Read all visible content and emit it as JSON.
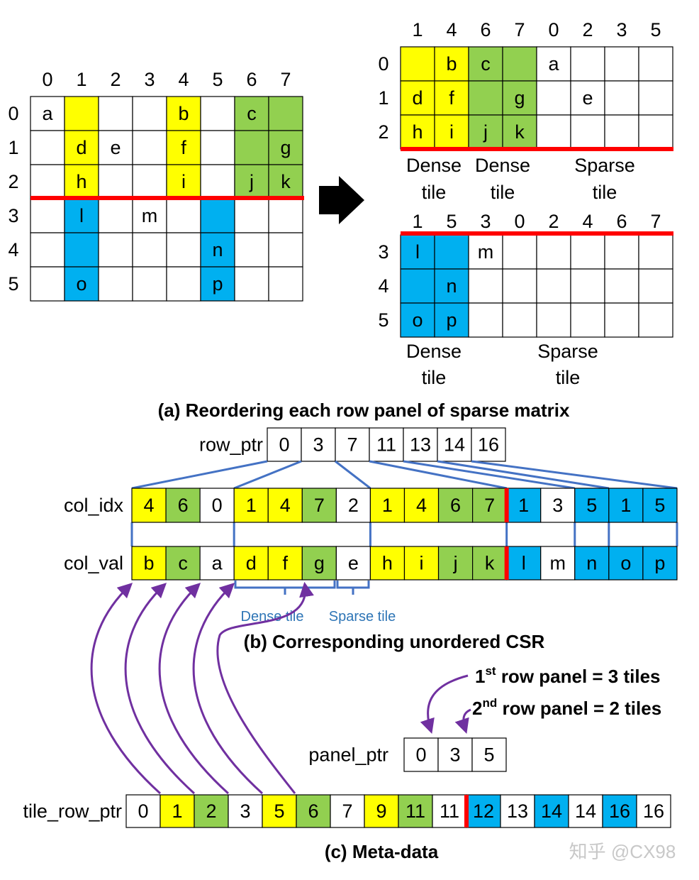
{
  "colors": {
    "Y": "#ffff00",
    "G": "#92d050",
    "B": "#00b0f0",
    "W": "#ffffff",
    "red": "#ff0000",
    "link": "#4472c4",
    "arrow": "#7030a0",
    "tile_label": "#2e75b6"
  },
  "matrix": {
    "col_labels": [
      "0",
      "1",
      "2",
      "3",
      "4",
      "5",
      "6",
      "7"
    ],
    "row_labels": [
      "0",
      "1",
      "2",
      "3",
      "4",
      "5"
    ],
    "colors": [
      "WYWWYWGG",
      "WYWWYWGG",
      "WYWWYWGG",
      "WBWWWBWW",
      "WBWWWBWW",
      "WBWWWBWW"
    ],
    "values": [
      [
        "a",
        "",
        "",
        "",
        "b",
        "",
        "c",
        ""
      ],
      [
        "",
        "d",
        "e",
        "",
        "f",
        "",
        "",
        "g"
      ],
      [
        "",
        "h",
        "",
        "",
        "i",
        "",
        "j",
        "k"
      ],
      [
        "",
        "l",
        "",
        "m",
        "",
        "",
        "",
        ""
      ],
      [
        "",
        "",
        "",
        "",
        "",
        "n",
        "",
        ""
      ],
      [
        "",
        "o",
        "",
        "",
        "",
        "p",
        "",
        ""
      ]
    ]
  },
  "panel1": {
    "col_labels": [
      "1",
      "4",
      "6",
      "7",
      "0",
      "2",
      "3",
      "5"
    ],
    "row_labels": [
      "0",
      "1",
      "2"
    ],
    "colors": [
      "YYGGWWWW",
      "YYGGWWWW",
      "YYGGWWWW"
    ],
    "values": [
      [
        "",
        "b",
        "c",
        "",
        "a",
        "",
        "",
        ""
      ],
      [
        "d",
        "f",
        "",
        "g",
        "",
        "e",
        "",
        ""
      ],
      [
        "h",
        "i",
        "j",
        "k",
        "",
        "",
        "",
        ""
      ]
    ],
    "tile_labels": [
      [
        "Dense",
        "tile"
      ],
      [
        "Dense",
        "tile"
      ],
      [
        "Sparse",
        "tile"
      ]
    ]
  },
  "panel2": {
    "col_labels": [
      "1",
      "5",
      "3",
      "0",
      "2",
      "4",
      "6",
      "7"
    ],
    "row_labels": [
      "3",
      "4",
      "5"
    ],
    "colors": [
      "BBWWWWWW",
      "BBWWWWWW",
      "BBWWWWWW"
    ],
    "values": [
      [
        "l",
        "",
        "m",
        "",
        "",
        "",
        "",
        ""
      ],
      [
        "",
        "n",
        "",
        "",
        "",
        "",
        "",
        ""
      ],
      [
        "o",
        "p",
        "",
        "",
        "",
        "",
        "",
        ""
      ]
    ],
    "tile_labels": [
      [
        "Dense",
        "tile"
      ],
      [
        "Sparse",
        "tile"
      ]
    ]
  },
  "caption_a": "(a) Reordering each row panel of sparse matrix",
  "row_ptr": {
    "label": "row_ptr",
    "values": [
      "0",
      "3",
      "7",
      "11",
      "13",
      "14",
      "16"
    ]
  },
  "col_idx": {
    "label": "col_idx",
    "values": [
      "4",
      "6",
      "0",
      "1",
      "4",
      "7",
      "2",
      "1",
      "4",
      "6",
      "7",
      "1",
      "3",
      "5",
      "1",
      "5"
    ],
    "colors": "YGWYYGWYYGGBWBBB"
  },
  "col_val": {
    "label": "col_val",
    "values": [
      "b",
      "c",
      "a",
      "d",
      "f",
      "g",
      "e",
      "h",
      "i",
      "j",
      "k",
      "l",
      "m",
      "n",
      "o",
      "p"
    ],
    "colors": "YGWYYGWYYGGBWBBB"
  },
  "tile_braces": {
    "dense": "Dense tile",
    "sparse": "Sparse tile"
  },
  "caption_b": "(b) Corresponding unordered CSR",
  "notes": {
    "first_sup": "st",
    "first_pre": "1",
    "first_post": " row panel = 3 tiles",
    "second_pre": "2",
    "second_sup": "nd",
    "second_post": " row panel = 2 tiles"
  },
  "panel_ptr": {
    "label": "panel_ptr",
    "values": [
      "0",
      "3",
      "5"
    ]
  },
  "tile_row_ptr": {
    "label": "tile_row_ptr",
    "values": [
      "0",
      "1",
      "2",
      "3",
      "5",
      "6",
      "7",
      "9",
      "11",
      "11",
      "12",
      "13",
      "14",
      "14",
      "16",
      "16"
    ],
    "colors": "WYGWYGWYGWBWBWBW"
  },
  "caption_c": "(c) Meta-data",
  "watermark": "知乎 @CX98"
}
